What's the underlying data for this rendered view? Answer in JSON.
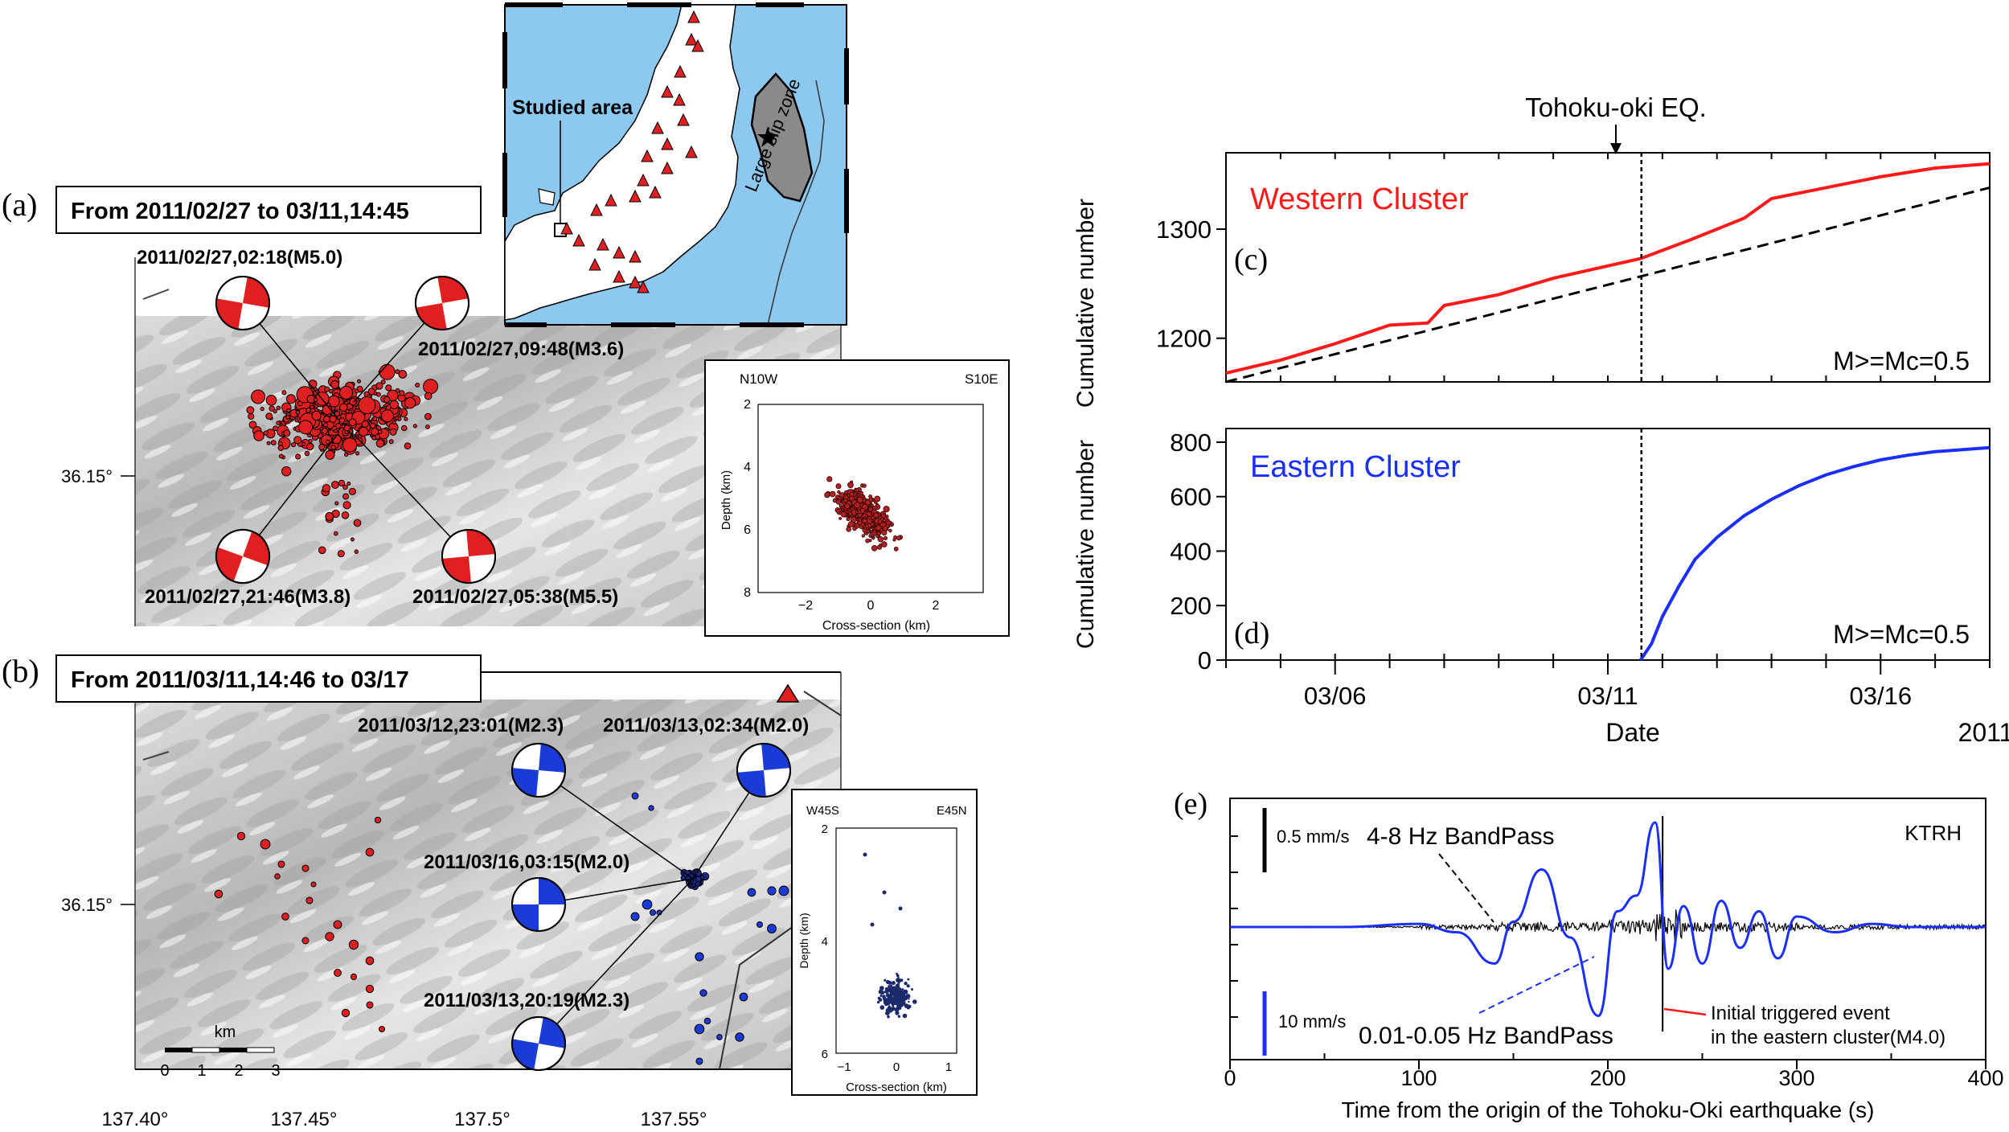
{
  "panel_labels": {
    "a": "(a)",
    "b": "(b)",
    "c": "(c)",
    "d": "(d)",
    "e": "(e)"
  },
  "map_a": {
    "title": "From 2011/02/27 to 03/11,14:45",
    "lat_label": "36.15°",
    "mechanisms": [
      {
        "label": "2011/02/27,02:18(M5.0)"
      },
      {
        "label": "2011/02/27,09:48(M3.6)"
      },
      {
        "label": "2011/02/27,21:46(M3.8)"
      },
      {
        "label": "2011/02/27,05:38(M5.5)"
      }
    ],
    "inset": {
      "left_label": "N10W",
      "right_label": "S10E",
      "xlabel": "Cross-section (km)",
      "ylabel": "Depth (km)",
      "xticks": [
        "−2",
        "0",
        "2"
      ],
      "yticks": [
        "2",
        "4",
        "6",
        "8"
      ]
    }
  },
  "map_b": {
    "title": "From 2011/03/11,14:46 to 03/17",
    "lat_label": "36.15°",
    "mechanisms": [
      {
        "label": "2011/03/12,23:01(M2.3)"
      },
      {
        "label": "2011/03/13,02:34(M2.0)"
      },
      {
        "label": "2011/03/16,03:15(M2.0)"
      },
      {
        "label": "2011/03/13,20:19(M2.3)"
      }
    ],
    "scalebar": {
      "unit": "km",
      "ticks": [
        "0",
        "1",
        "2",
        "3"
      ]
    },
    "lon_ticks": [
      "137.40°",
      "137.45°",
      "137.5°",
      "137.55°"
    ],
    "inset": {
      "left_label": "W45S",
      "right_label": "E45N",
      "xlabel": "Cross-section (km)",
      "ylabel": "Depth (km)",
      "xticks": [
        "−1",
        "0",
        "1"
      ],
      "yticks": [
        "2",
        "4",
        "6"
      ]
    }
  },
  "japan_map": {
    "studied_label": "Studied area",
    "slip_label": "Large slip zone"
  },
  "colors": {
    "western": "#ff1a1a",
    "eastern": "#1a2eff",
    "quake_red": "#e02020",
    "mech_blue": "#1a3bd6",
    "ocean": "#8cc8f0"
  },
  "chart_data": [
    {
      "type": "line",
      "title": "Western Cluster",
      "ylabel": "Cumulative number",
      "annotation": "M>=Mc=0.5",
      "event_label": "Tohoku-oki EQ.",
      "x_range": [
        "2011-03-04",
        "2011-03-18"
      ],
      "event_date": "2011-03-11 14:46",
      "ylim": [
        1160,
        1370
      ],
      "yticks": [
        1200,
        1300
      ],
      "series": [
        {
          "name": "",
          "style": "solid",
          "color": "#ff1a1a",
          "x": [
            "2011-03-04",
            "2011-03-05",
            "2011-03-06",
            "2011-03-07",
            "2011-03-07.7",
            "2011-03-08",
            "2011-03-09",
            "2011-03-10",
            "2011-03-11.6",
            "2011-03-12.5",
            "2011-03-13.5",
            "2011-03-14",
            "2011-03-15",
            "2011-03-16",
            "2011-03-17",
            "2011-03-18"
          ],
          "y": [
            1168,
            1180,
            1195,
            1212,
            1214,
            1230,
            1240,
            1255,
            1273,
            1290,
            1310,
            1328,
            1338,
            1348,
            1356,
            1360
          ]
        },
        {
          "name": "",
          "style": "dashed",
          "color": "#000000",
          "x": [
            "2011-03-04",
            "2011-03-18"
          ],
          "y": [
            1160,
            1338
          ]
        }
      ]
    },
    {
      "type": "line",
      "title": "Eastern Cluster",
      "ylabel": "Cumulative number",
      "annotation": "M>=Mc=0.5",
      "xlabel": "Date",
      "x_range": [
        "2011-03-04",
        "2011-03-18"
      ],
      "xticks": [
        "03/06",
        "03/11",
        "03/16"
      ],
      "year_label": "2011",
      "ylim": [
        0,
        850
      ],
      "yticks": [
        0,
        200,
        400,
        600,
        800
      ],
      "series": [
        {
          "name": "",
          "style": "solid",
          "color": "#1a2eff",
          "x": [
            "2011-03-11.6",
            "2011-03-11.8",
            "2011-03-12",
            "2011-03-12.3",
            "2011-03-12.6",
            "2011-03-13",
            "2011-03-13.5",
            "2011-03-14",
            "2011-03-14.5",
            "2011-03-15",
            "2011-03-15.5",
            "2011-03-16",
            "2011-03-16.5",
            "2011-03-17",
            "2011-03-18"
          ],
          "y": [
            0,
            60,
            160,
            270,
            370,
            450,
            530,
            590,
            640,
            680,
            710,
            735,
            752,
            765,
            780
          ]
        }
      ]
    },
    {
      "type": "line",
      "title": "KTRH",
      "xlabel": "Time from the origin of the Tohoku-Oki earthquake (s)",
      "xlim": [
        0,
        400
      ],
      "xticks": [
        0,
        100,
        200,
        300,
        400
      ],
      "scale_labels": [
        "0.5 mm/s",
        "10 mm/s"
      ],
      "series": [
        {
          "name": "4-8 Hz BandPass",
          "color": "#000000"
        },
        {
          "name": "0.01-0.05 Hz BandPass",
          "color": "#1a2eff",
          "x": [
            0,
            60,
            100,
            120,
            140,
            150,
            165,
            180,
            195,
            205,
            215,
            225,
            232,
            240,
            250,
            260,
            270,
            280,
            290,
            300,
            320,
            340,
            360,
            400
          ],
          "y": [
            0,
            0,
            0.03,
            -0.05,
            -0.35,
            0.05,
            0.55,
            -0.1,
            -0.85,
            0.15,
            0.3,
            1.0,
            -0.4,
            0.2,
            -0.35,
            0.25,
            -0.2,
            0.15,
            -0.3,
            0.1,
            -0.05,
            0.03,
            0,
            0
          ]
        }
      ],
      "annotations": [
        "Initial triggered event",
        "in the eastern cluster(M4.0)"
      ]
    }
  ]
}
